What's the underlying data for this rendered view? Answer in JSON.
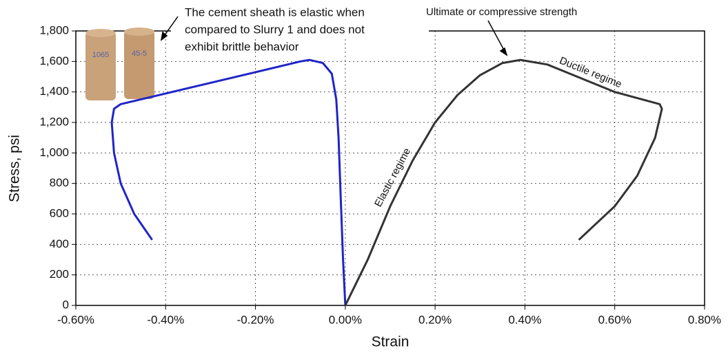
{
  "chart_data": {
    "type": "line",
    "x_label": "Strain",
    "y_label": "Stress, psi",
    "xlim": [
      -0.6,
      0.8
    ],
    "xticks": [
      {
        "value": -0.6,
        "label": "-0.60%"
      },
      {
        "value": -0.4,
        "label": "-0.40%"
      },
      {
        "value": -0.2,
        "label": "-0.20%"
      },
      {
        "value": 0,
        "label": "0.00%"
      },
      {
        "value": 0.2,
        "label": "0.20%"
      },
      {
        "value": 0.4,
        "label": "0.40%"
      },
      {
        "value": 0.6,
        "label": "0.60%"
      },
      {
        "value": 0.8,
        "label": "0.80%"
      }
    ],
    "ylim": [
      0,
      1800
    ],
    "yticks": [
      0,
      200,
      400,
      600,
      800,
      {
        "value": 1000,
        "label": "1,000"
      },
      {
        "value": 1200,
        "label": "1,200"
      },
      {
        "value": 1400,
        "label": "1,400"
      },
      {
        "value": 1600,
        "label": "1,600"
      },
      {
        "value": 1800,
        "label": "1,800"
      }
    ],
    "grid": true,
    "series": [
      {
        "color": "#1f24c8",
        "x": [
          0,
          -0.005,
          -0.01,
          -0.015,
          -0.02,
          -0.03,
          -0.05,
          -0.08,
          -0.1,
          -0.2,
          -0.3,
          -0.4,
          -0.5,
          -0.515,
          -0.52,
          -0.515,
          -0.5,
          -0.47,
          -0.43
        ],
        "values": [
          0,
          300,
          700,
          1100,
          1350,
          1520,
          1590,
          1610,
          1600,
          1530,
          1460,
          1390,
          1320,
          1290,
          1200,
          1000,
          800,
          600,
          430
        ]
      },
      {
        "color": "#333333",
        "x": [
          0,
          0.05,
          0.1,
          0.15,
          0.2,
          0.25,
          0.3,
          0.35,
          0.39,
          0.45,
          0.5,
          0.6,
          0.7,
          0.705,
          0.69,
          0.65,
          0.6,
          0.52
        ],
        "values": [
          0,
          300,
          650,
          950,
          1200,
          1380,
          1510,
          1590,
          1610,
          1580,
          1520,
          1400,
          1320,
          1290,
          1100,
          850,
          650,
          430
        ]
      }
    ],
    "annotations": {
      "note": [
        "The cement sheath is elastic when",
        "compared to Slurry 1 and does not",
        "exhibit brittle behavior"
      ],
      "peak": "Ultimate or compressive strength",
      "elastic": "Elastic regime",
      "ductile": "Ductile regime"
    }
  }
}
